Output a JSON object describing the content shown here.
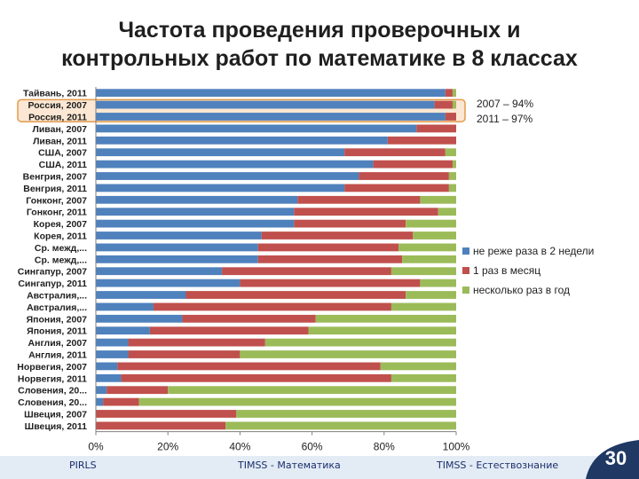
{
  "title_lines": [
    "Частота проведения проверочных и",
    "контрольных работ по математике в 8 классах"
  ],
  "annotation": {
    "line1": "2007 – 94%",
    "line2": "2011 – 97%"
  },
  "footer": {
    "left": "PIRLS",
    "center": "TIMSS - Математика",
    "right": "TIMSS - Естествознание"
  },
  "page_number": "30",
  "colors": {
    "series_blue": "#4f81bd",
    "series_red": "#c0504d",
    "series_green": "#9bbb59",
    "footer_band": "#e3ebf5",
    "badge": "#1f3864"
  },
  "chart_data": {
    "type": "bar",
    "orientation": "horizontal",
    "stacked": "percent",
    "categories": [
      "Тайвань, 2011",
      "Россия, 2007",
      "Россия, 2011",
      "Ливан, 2007",
      "Ливан, 2011",
      "США, 2007",
      "США, 2011",
      "Венгрия, 2007",
      "Венгрия, 2011",
      "Гонконг, 2007",
      "Гонконг, 2011",
      "Корея, 2007",
      "Корея, 2011",
      "Ср. межд,...",
      "Ср. межд,...",
      "Сингапур, 2007",
      "Сингапур, 2011",
      "Австралия,...",
      "Австралия,...",
      "Япония, 2007",
      "Япония, 2011",
      "Англия, 2007",
      "Англия, 2011",
      "Норвегия, 2007",
      "Норвегия, 2011",
      "Словения, 20...",
      "Словения, 20...",
      "Швеция, 2007",
      "Швеция, 2011"
    ],
    "series": [
      {
        "name": "не реже раза в 2 недели",
        "values": [
          97,
          94,
          97,
          89,
          81,
          69,
          77,
          73,
          69,
          56,
          55,
          55,
          46,
          45,
          45,
          35,
          40,
          25,
          16,
          24,
          15,
          9,
          9,
          6,
          7,
          3,
          2,
          0,
          0
        ]
      },
      {
        "name": "1 раз в месяц",
        "values": [
          2,
          5,
          3,
          11,
          19,
          28,
          22,
          25,
          29,
          34,
          40,
          31,
          42,
          39,
          40,
          47,
          50,
          61,
          66,
          37,
          44,
          38,
          31,
          73,
          75,
          17,
          10,
          39,
          36
        ]
      },
      {
        "name": "несколько раз в год",
        "values": [
          1,
          1,
          0,
          0,
          0,
          3,
          1,
          2,
          2,
          10,
          5,
          14,
          12,
          16,
          15,
          18,
          10,
          14,
          18,
          39,
          41,
          53,
          60,
          21,
          18,
          80,
          88,
          61,
          64
        ]
      }
    ],
    "x_ticks": [
      "0%",
      "20%",
      "40%",
      "60%",
      "80%",
      "100%"
    ],
    "xlim": [
      0,
      100
    ],
    "highlighted_categories": [
      1,
      2
    ],
    "legend_position": "right",
    "grid": false
  }
}
